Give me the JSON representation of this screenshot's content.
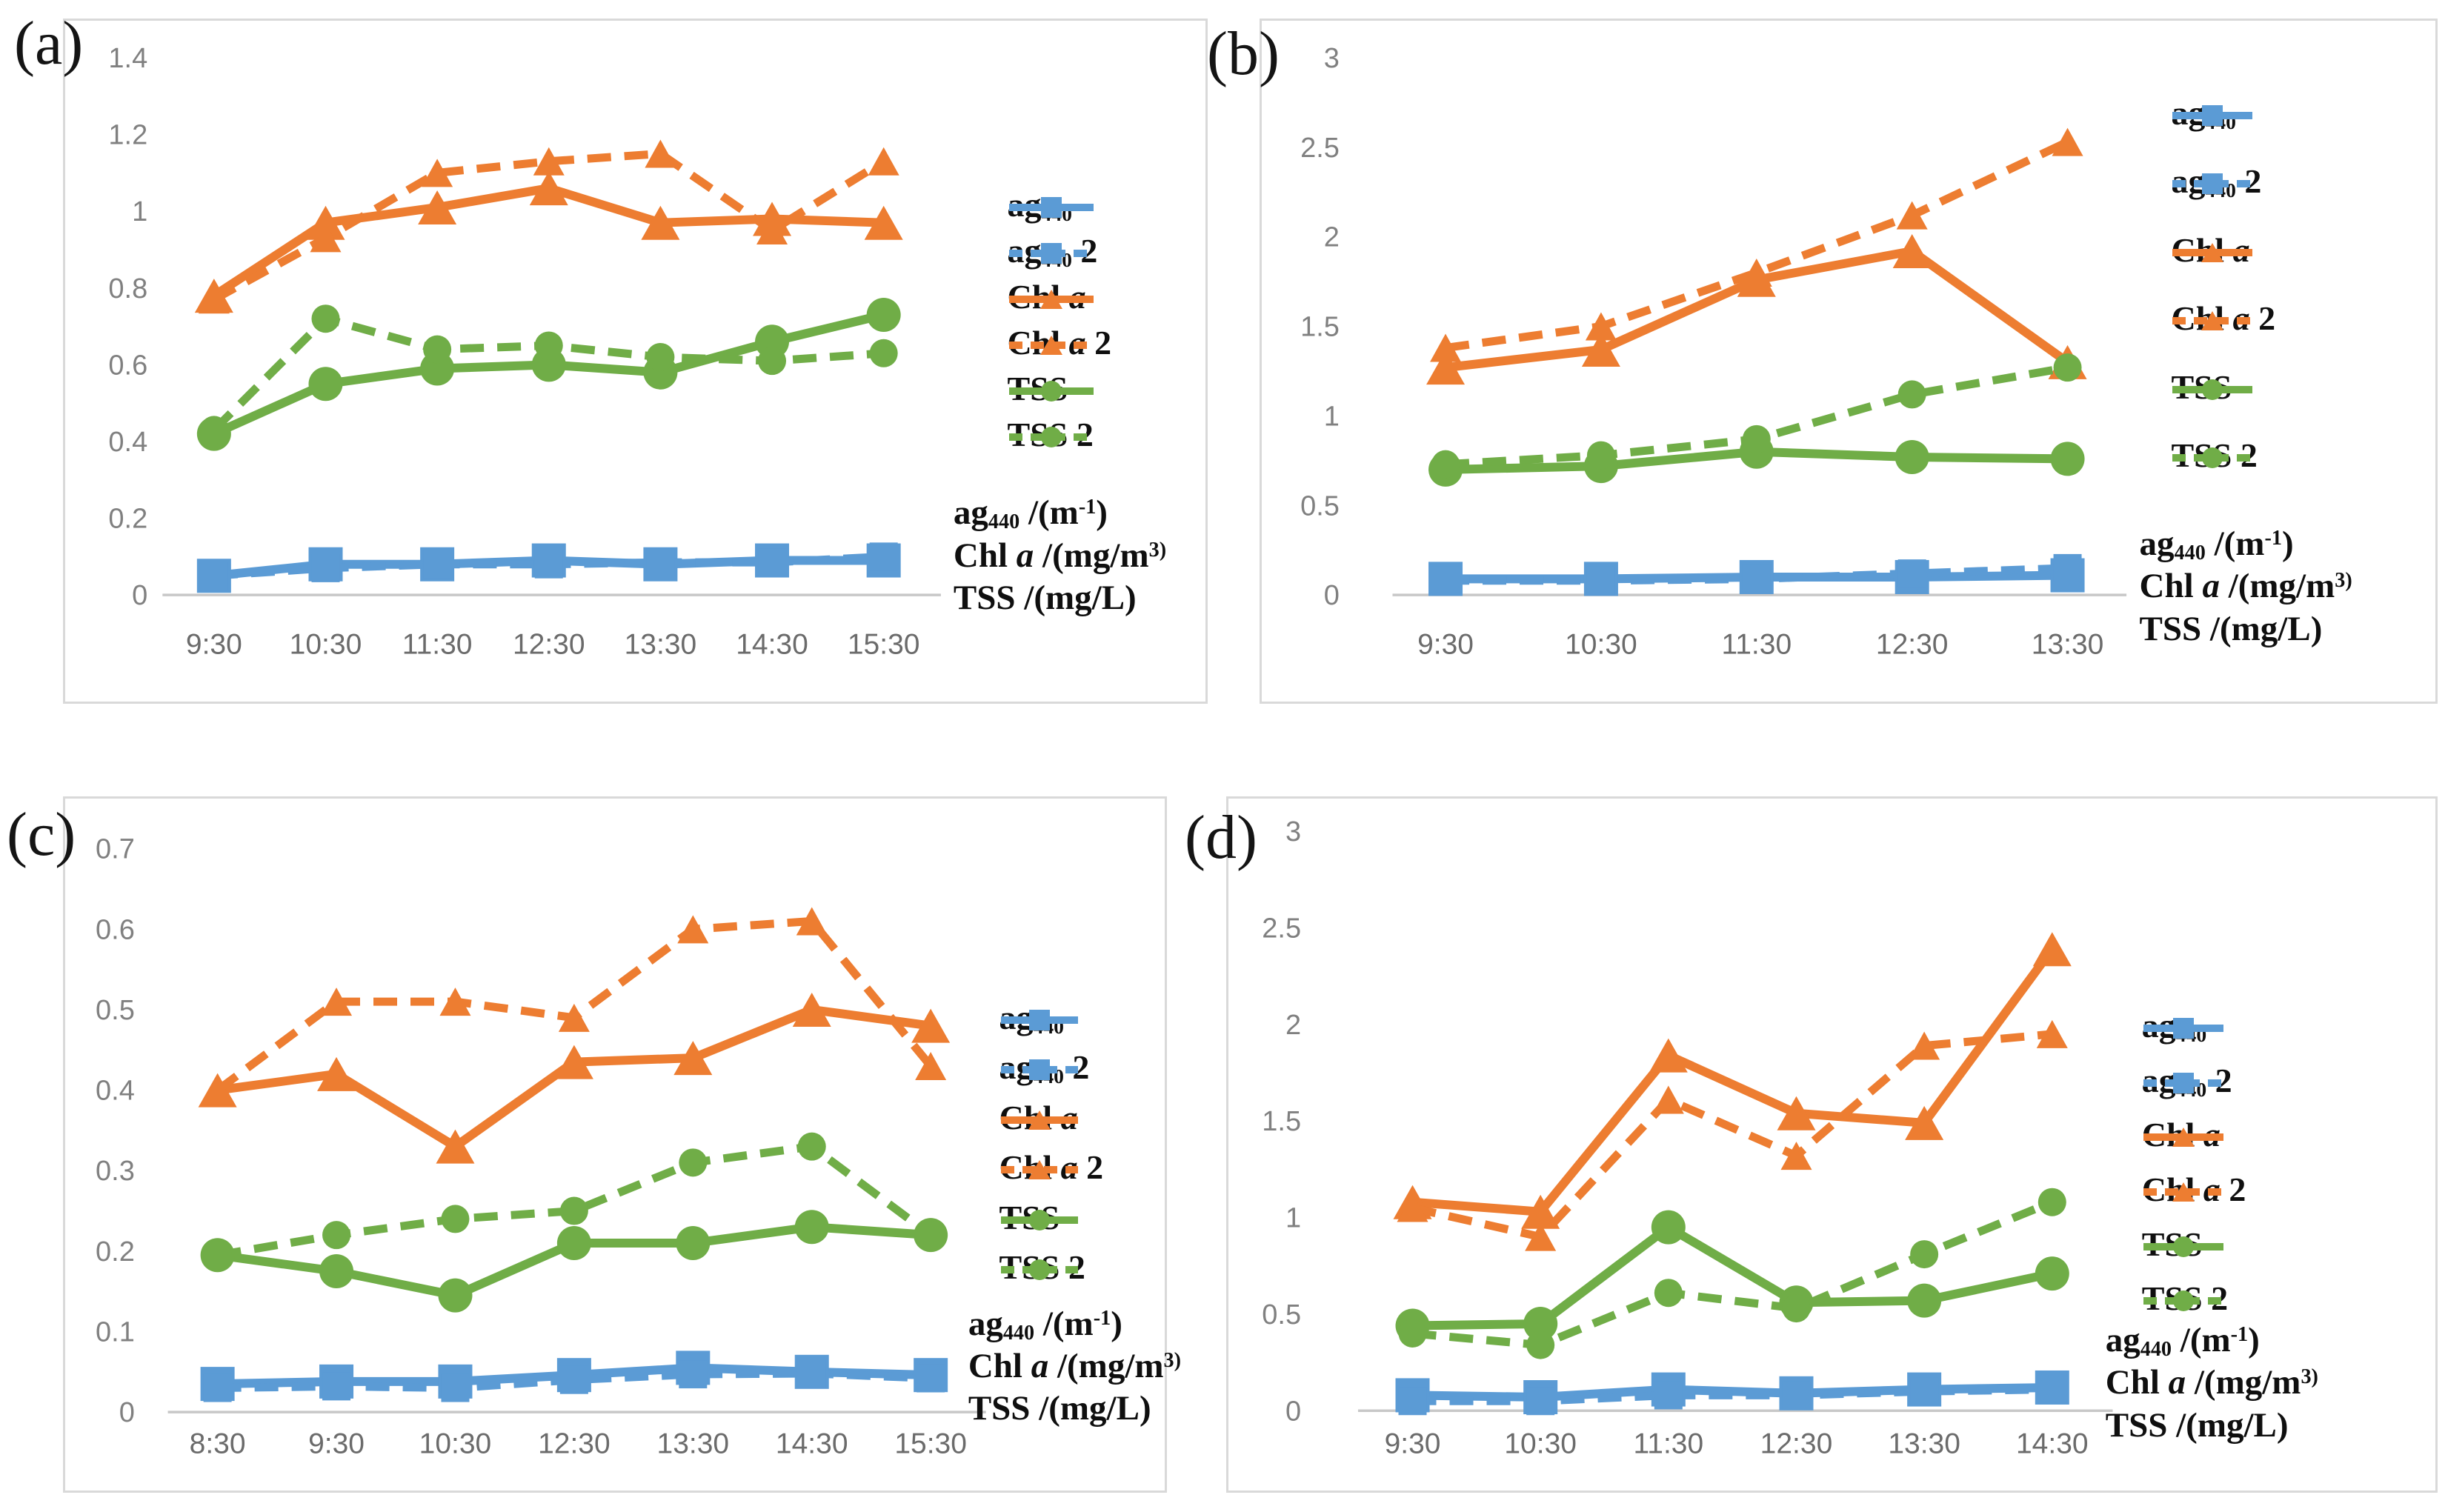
{
  "colors": {
    "blue": "#5B9BD5",
    "orange": "#ED7D31",
    "green": "#70AD47",
    "axis_tick_text": "#808080",
    "x_label_text": "#6b6b6b",
    "baseline": "#C8C8C8",
    "panel_border": "#D9D9D9"
  },
  "legend": {
    "items": [
      {
        "id": "ag440",
        "parts": [
          {
            "t": "ag"
          },
          {
            "t": "440",
            "sub": true
          }
        ],
        "color": "blue",
        "dash": false,
        "marker": "square"
      },
      {
        "id": "ag440_2",
        "parts": [
          {
            "t": "ag"
          },
          {
            "t": "440",
            "sub": true
          },
          {
            "t": " 2"
          }
        ],
        "color": "blue",
        "dash": true,
        "marker": "square"
      },
      {
        "id": "chl_a",
        "parts": [
          {
            "t": "Chl "
          },
          {
            "t": "a",
            "italic": true
          }
        ],
        "color": "orange",
        "dash": false,
        "marker": "triangle"
      },
      {
        "id": "chl_a_2",
        "parts": [
          {
            "t": "Chl "
          },
          {
            "t": "a",
            "italic": true
          },
          {
            "t": " 2"
          }
        ],
        "color": "orange",
        "dash": true,
        "marker": "triangle"
      },
      {
        "id": "tss",
        "parts": [
          {
            "t": "TSS"
          }
        ],
        "color": "green",
        "dash": false,
        "marker": "circle"
      },
      {
        "id": "tss_2",
        "parts": [
          {
            "t": "TSS 2"
          }
        ],
        "color": "green",
        "dash": true,
        "marker": "circle"
      }
    ]
  },
  "units_lines": [
    [
      {
        "t": "ag"
      },
      {
        "t": "440",
        "sub": true
      },
      {
        "t": " /(m"
      },
      {
        "t": "-1",
        "sup": true
      },
      {
        "t": ")"
      }
    ],
    [
      {
        "t": "Chl "
      },
      {
        "t": "a",
        "italic": true
      },
      {
        "t": " /(mg/m"
      },
      {
        "t": "3)",
        "sup": true
      }
    ],
    [
      {
        "t": "TSS /(mg/L)"
      }
    ]
  ],
  "chart_data": [
    {
      "id": "a",
      "letter": "(a)",
      "type": "line",
      "legend_position": "right",
      "grid": false,
      "ylim": [
        0,
        1.4
      ],
      "y_ticks": [
        "0",
        "0.2",
        "0.4",
        "0.6",
        "0.8",
        "1",
        "1.2",
        "1.4"
      ],
      "categories": [
        "9:30",
        "10:30",
        "11:30",
        "12:30",
        "13:30",
        "14:30",
        "15:30"
      ],
      "series": [
        {
          "name": "ag440",
          "values": [
            0.05,
            0.08,
            0.08,
            0.09,
            0.08,
            0.09,
            0.09
          ]
        },
        {
          "name": "ag440_2",
          "values": [
            0.05,
            0.07,
            0.08,
            0.08,
            0.085,
            0.085,
            0.1
          ]
        },
        {
          "name": "chl_a",
          "values": [
            0.78,
            0.97,
            1.01,
            1.06,
            0.97,
            0.98,
            0.97
          ]
        },
        {
          "name": "chl_a_2",
          "values": [
            0.77,
            0.93,
            1.1,
            1.13,
            1.15,
            0.95,
            1.13
          ]
        },
        {
          "name": "tss",
          "values": [
            0.42,
            0.55,
            0.59,
            0.6,
            0.58,
            0.66,
            0.73
          ]
        },
        {
          "name": "tss_2",
          "values": [
            0.43,
            0.72,
            0.64,
            0.65,
            0.62,
            0.61,
            0.63
          ]
        }
      ]
    },
    {
      "id": "b",
      "letter": "(b)",
      "type": "line",
      "legend_position": "right",
      "grid": false,
      "ylim": [
        0,
        3
      ],
      "y_ticks": [
        "0",
        "0.5",
        "1",
        "1.5",
        "2",
        "2.5",
        "3"
      ],
      "categories": [
        "9:30",
        "10:30",
        "11:30",
        "12:30",
        "13:30"
      ],
      "series": [
        {
          "name": "ag440",
          "values": [
            0.09,
            0.09,
            0.1,
            0.1,
            0.11
          ]
        },
        {
          "name": "ag440_2",
          "values": [
            0.08,
            0.08,
            0.09,
            0.12,
            0.15
          ]
        },
        {
          "name": "chl_a",
          "values": [
            1.27,
            1.37,
            1.76,
            1.92,
            1.3
          ]
        },
        {
          "name": "chl_a_2",
          "values": [
            1.38,
            1.5,
            1.8,
            2.12,
            2.53
          ]
        },
        {
          "name": "tss",
          "values": [
            0.7,
            0.72,
            0.8,
            0.77,
            0.76
          ]
        },
        {
          "name": "tss_2",
          "values": [
            0.73,
            0.78,
            0.87,
            1.12,
            1.27
          ]
        }
      ]
    },
    {
      "id": "c",
      "letter": "(c)",
      "type": "line",
      "legend_position": "right",
      "grid": false,
      "ylim": [
        0,
        0.7
      ],
      "y_ticks": [
        "0",
        "0.1",
        "0.2",
        "0.3",
        "0.4",
        "0.5",
        "0.6",
        "0.7"
      ],
      "categories": [
        "8:30",
        "9:30",
        "10:30",
        "12:30",
        "13:30",
        "14:30",
        "15:30"
      ],
      "series": [
        {
          "name": "ag440",
          "values": [
            0.035,
            0.038,
            0.038,
            0.046,
            0.055,
            0.05,
            0.046
          ]
        },
        {
          "name": "ag440_2",
          "values": [
            0.03,
            0.032,
            0.03,
            0.04,
            0.047,
            0.048,
            0.042
          ]
        },
        {
          "name": "chl_a",
          "values": [
            0.4,
            0.42,
            0.33,
            0.435,
            0.44,
            0.5,
            0.48
          ]
        },
        {
          "name": "chl_a_2",
          "values": [
            0.4,
            0.51,
            0.51,
            0.49,
            0.6,
            0.61,
            0.43
          ]
        },
        {
          "name": "tss",
          "values": [
            0.195,
            0.175,
            0.145,
            0.21,
            0.21,
            0.23,
            0.22
          ]
        },
        {
          "name": "tss_2",
          "values": [
            0.195,
            0.22,
            0.24,
            0.25,
            0.31,
            0.33,
            0.22
          ]
        }
      ]
    },
    {
      "id": "d",
      "letter": "(d)",
      "type": "line",
      "legend_position": "right",
      "grid": false,
      "ylim": [
        0,
        3
      ],
      "y_ticks": [
        "0",
        "0.5",
        "1",
        "1.5",
        "2",
        "2.5",
        "3"
      ],
      "categories": [
        "9:30",
        "10:30",
        "11:30",
        "12:30",
        "13:30",
        "14:30"
      ],
      "series": [
        {
          "name": "ag440",
          "values": [
            0.08,
            0.07,
            0.11,
            0.09,
            0.11,
            0.12
          ]
        },
        {
          "name": "ag440_2",
          "values": [
            0.05,
            0.05,
            0.08,
            0.08,
            0.1,
            0.11
          ]
        },
        {
          "name": "chl_a",
          "values": [
            1.08,
            1.03,
            1.84,
            1.54,
            1.49,
            2.39
          ]
        },
        {
          "name": "chl_a_2",
          "values": [
            1.05,
            0.9,
            1.61,
            1.32,
            1.89,
            1.95
          ]
        },
        {
          "name": "tss",
          "values": [
            0.44,
            0.45,
            0.95,
            0.56,
            0.57,
            0.71
          ]
        },
        {
          "name": "tss_2",
          "values": [
            0.4,
            0.34,
            0.61,
            0.53,
            0.81,
            1.08
          ]
        }
      ]
    }
  ]
}
